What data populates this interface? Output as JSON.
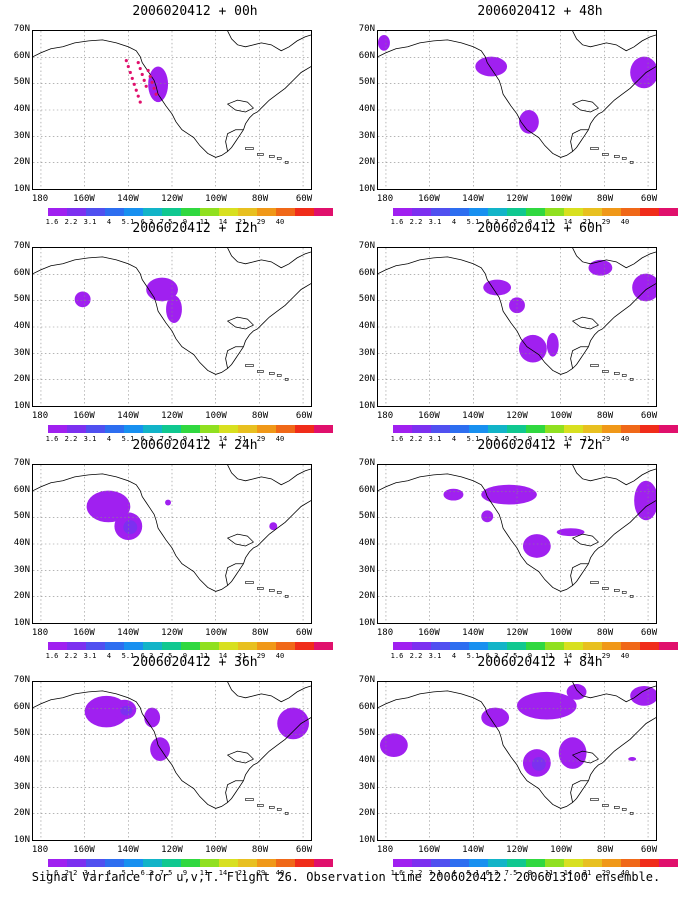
{
  "caption": "Signal Variance for u,v,T. Flight 26. Observation time 2006020412. 2006013100 ensemble.",
  "lat_labels": [
    "70N",
    "60N",
    "50N",
    "40N",
    "30N",
    "20N",
    "10N"
  ],
  "lon_labels": [
    "180",
    "160W",
    "140W",
    "120W",
    "100W",
    "80W",
    "60W"
  ],
  "colorbar": {
    "colors": [
      "#a020f0",
      "#7c30f0",
      "#5050f0",
      "#2d6ef0",
      "#1890f0",
      "#12b4c8",
      "#10c890",
      "#30d840",
      "#90e020",
      "#d8e020",
      "#e8c020",
      "#f09818",
      "#f06818",
      "#f02c1a",
      "#e0106c"
    ],
    "labels": [
      "1.6",
      "2.2",
      "3.1",
      "4",
      "5.1",
      "6.3",
      "7.5",
      "9",
      "11",
      "14",
      "21",
      "29",
      "40"
    ]
  },
  "panels": [
    {
      "title": "2006020412 + 00h",
      "col": 0,
      "row": 0
    },
    {
      "title": "2006020412 + 48h",
      "col": 1,
      "row": 0
    },
    {
      "title": "2006020412 + 12h",
      "col": 0,
      "row": 1
    },
    {
      "title": "2006020412 + 60h",
      "col": 1,
      "row": 1
    },
    {
      "title": "2006020412 + 24h",
      "col": 0,
      "row": 2
    },
    {
      "title": "2006020412 + 72h",
      "col": 1,
      "row": 2
    },
    {
      "title": "2006020412 + 36h",
      "col": 0,
      "row": 3
    },
    {
      "title": "2006020412 + 84h",
      "col": 1,
      "row": 3
    }
  ]
}
